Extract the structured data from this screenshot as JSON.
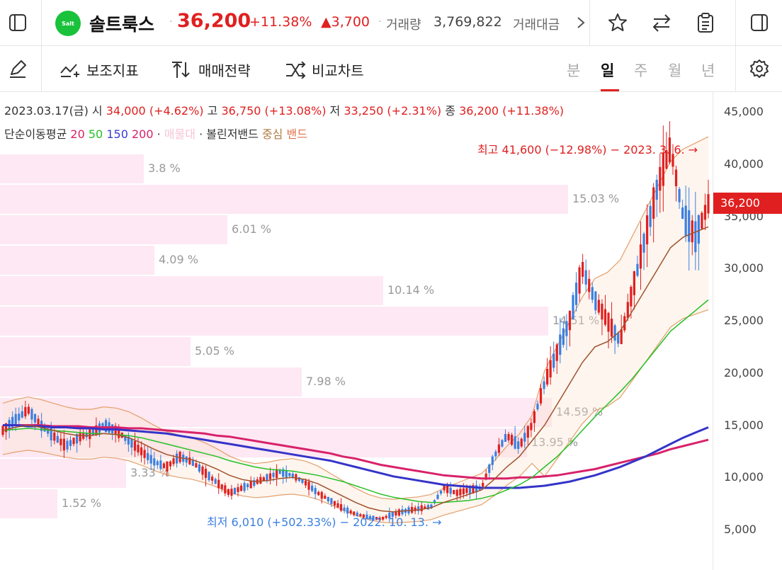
{
  "header": {
    "logo_text": "Salt",
    "name": "솔트룩스",
    "price": "36,200",
    "change_pct": "+11.38%",
    "change_abs": "▲3,700",
    "volume_label": "거래량",
    "volume_value": "3,769,822",
    "amount_label": "거래대금",
    "more_icon": ">"
  },
  "toolbar": {
    "indicator_label": "보조지표",
    "strategy_label": "매매전략",
    "compare_label": "비교차트",
    "periods": [
      "분",
      "일",
      "주",
      "월",
      "년"
    ],
    "active_period": "일"
  },
  "info": {
    "date": "2023.03.17(금)",
    "open_label": "시",
    "open": "34,000 (+4.62%)",
    "high_label": "고",
    "high": "36,750 (+13.08%)",
    "low_label": "저",
    "low": "33,250 (+2.31%)",
    "close_label": "종",
    "close": "36,200 (+11.38%)",
    "ma_label": "단순이동평균",
    "ma": [
      "20",
      "50",
      "150",
      "200"
    ],
    "vp_label": "매물대",
    "bb_label": "볼린저밴드",
    "bb_mid": "중심",
    "bb_band": "밴드"
  },
  "notes": {
    "max": "최고 41,600 (−12.98%) − 2023. 3. 6. →",
    "min": "최저 6,010 (+502.33%) − 2022. 10. 13. →"
  },
  "axis": {
    "ticks": [
      "45,000",
      "40,000",
      "35,000",
      "30,000",
      "25,000",
      "20,000",
      "15,000",
      "10,000",
      "5,000"
    ],
    "current": "36,200"
  },
  "colors": {
    "up": "#e02020",
    "down": "#3b7fe0",
    "ma20": "#a0522d",
    "ma50": "#26c026",
    "ma150": "#3434c8",
    "ma200": "#d8226a",
    "band": "#e3a06c"
  },
  "chart_data": {
    "type": "candlestick",
    "y_range": [
      2000,
      46000
    ],
    "volume_profile": [
      {
        "pct": 3.8,
        "label": "3.8 %"
      },
      {
        "pct": 15.03,
        "label": "15.03 %"
      },
      {
        "pct": 6.01,
        "label": "6.01 %"
      },
      {
        "pct": 4.09,
        "label": "4.09 %"
      },
      {
        "pct": 10.14,
        "label": "10.14 %"
      },
      {
        "pct": 14.51,
        "label": "14.51 %"
      },
      {
        "pct": 5.05,
        "label": "5.05 %"
      },
      {
        "pct": 7.98,
        "label": "7.98 %"
      },
      {
        "pct": 14.59,
        "label": "14.59 %"
      },
      {
        "pct": 13.95,
        "label": "13.95 %"
      },
      {
        "pct": 3.33,
        "label": "3.33 %"
      },
      {
        "pct": 1.52,
        "label": "1.52 %"
      }
    ],
    "close_path": [
      14500,
      15500,
      16500,
      15000,
      14000,
      13000,
      13800,
      14200,
      15000,
      14500,
      13500,
      12500,
      11500,
      11000,
      12000,
      11500,
      10500,
      9500,
      8500,
      9000,
      9500,
      10000,
      10500,
      10200,
      9500,
      8500,
      7800,
      7000,
      6500,
      6200,
      6010,
      6500,
      6800,
      7000,
      7200,
      9000,
      8500,
      8800,
      9000,
      12000,
      14000,
      13000,
      15000,
      19000,
      22000,
      25000,
      30000,
      27000,
      25000,
      23000,
      28000,
      33000,
      38000,
      41600,
      35000,
      33000,
      36200
    ],
    "ma20": [
      14500,
      14800,
      15000,
      14800,
      14500,
      14200,
      14000,
      14000,
      14200,
      14100,
      13800,
      13300,
      12700,
      12200,
      11900,
      11700,
      11300,
      10800,
      10200,
      9800,
      9600,
      9700,
      9900,
      10000,
      9800,
      9400,
      8800,
      8200,
      7600,
      7100,
      6800,
      6700,
      6800,
      6900,
      7100,
      7600,
      8000,
      8400,
      8800,
      9800,
      11000,
      12000,
      13500,
      15000,
      17000,
      19000,
      21000,
      22500,
      23000,
      24000,
      26000,
      28000,
      30000,
      32000,
      33000,
      33500,
      34000
    ],
    "ma50": [
      14500,
      14600,
      14700,
      14600,
      14500,
      14400,
      14300,
      14200,
      14200,
      14100,
      14000,
      13800,
      13500,
      13200,
      12900,
      12600,
      12300,
      12000,
      11600,
      11300,
      11000,
      10800,
      10700,
      10600,
      10400,
      10200,
      9900,
      9600,
      9200,
      8800,
      8400,
      8100,
      7900,
      7700,
      7600,
      7600,
      7700,
      7800,
      8000,
      8300,
      8800,
      9300,
      10000,
      11000,
      12000,
      13200,
      14500,
      15800,
      17000,
      18200,
      19500,
      21000,
      22500,
      24000,
      25000,
      26000,
      27000
    ],
    "ma150": [
      15000,
      15000,
      14900,
      14900,
      14800,
      14800,
      14700,
      14700,
      14600,
      14600,
      14500,
      14400,
      14300,
      14200,
      14000,
      13800,
      13600,
      13400,
      13200,
      13000,
      12800,
      12600,
      12400,
      12200,
      12000,
      11800,
      11600,
      11300,
      11000,
      10700,
      10400,
      10100,
      9900,
      9700,
      9500,
      9300,
      9200,
      9100,
      9000,
      9000,
      9000,
      9000,
      9100,
      9200,
      9400,
      9600,
      9900,
      10200,
      10600,
      11000,
      11500,
      12000,
      12600,
      13200,
      13800,
      14300,
      14800
    ],
    "ma200": [
      15000,
      15000,
      15000,
      15000,
      14900,
      14900,
      14900,
      14800,
      14800,
      14800,
      14700,
      14700,
      14600,
      14500,
      14400,
      14300,
      14200,
      14000,
      13900,
      13700,
      13500,
      13300,
      13100,
      12900,
      12700,
      12500,
      12300,
      12000,
      11800,
      11500,
      11200,
      11000,
      10800,
      10600,
      10400,
      10200,
      10100,
      10000,
      9900,
      9900,
      9900,
      10000,
      10000,
      10100,
      10200,
      10400,
      10600,
      10800,
      11100,
      11400,
      11700,
      12000,
      12300,
      12700,
      13000,
      13300,
      13600
    ]
  }
}
